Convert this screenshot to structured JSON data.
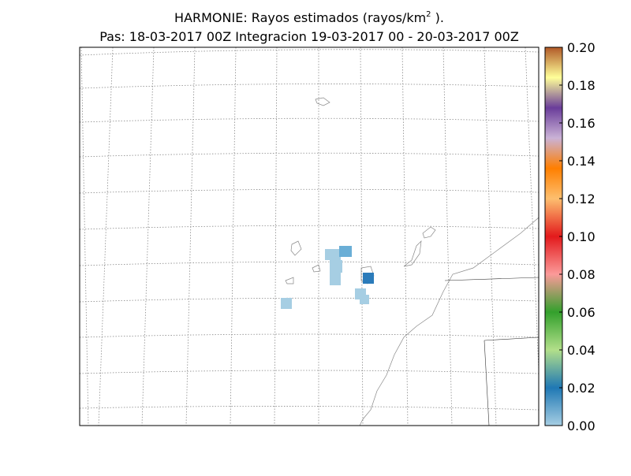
{
  "title": "HARMONIE: Rayos estimados  (rayos/km",
  "title_superscript": "2",
  "title_end": " ).",
  "subtitle": "Pas: 18-03-2017 00Z Integracion 19-03-2017 00 - 20-03-2017 00Z",
  "colorbar": {
    "lim": [
      0,
      0.2
    ],
    "ticks": [
      {
        "value": 0,
        "label": "0.00"
      },
      {
        "value": 0.02,
        "label": "0.02"
      },
      {
        "value": 0.04,
        "label": "0.04"
      },
      {
        "value": 0.06,
        "label": "0.06"
      },
      {
        "value": 0.08,
        "label": "0.08"
      },
      {
        "value": 0.1,
        "label": "0.10"
      },
      {
        "value": 0.12,
        "label": "0.12"
      },
      {
        "value": 0.14,
        "label": "0.14"
      },
      {
        "value": 0.16,
        "label": "0.16"
      },
      {
        "value": 0.18,
        "label": "0.18"
      },
      {
        "value": 0.2,
        "label": "0.20"
      }
    ]
  }
}
